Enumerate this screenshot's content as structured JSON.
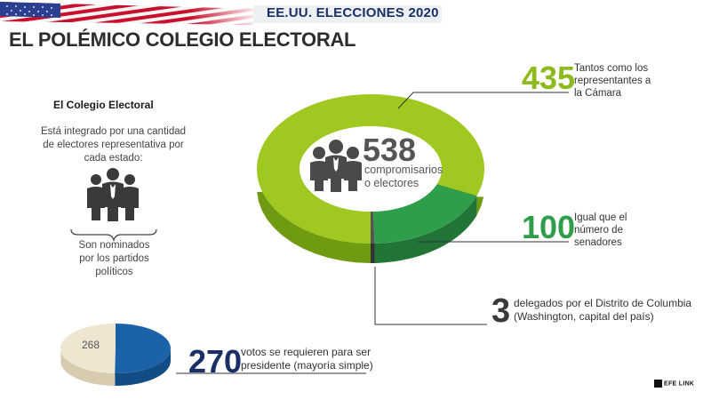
{
  "header": {
    "series_title": "EE.UU. ELECCIONES 2020",
    "main_title": "EL POLÉMICO COLEGIO ELECTORAL"
  },
  "sidebar": {
    "heading": "El Colegio Electoral",
    "text_lines": [
      "Está integrado por una cantidad",
      "de electores representativa por",
      "cada estado:"
    ],
    "nominated_lines": [
      "Son nominados",
      "por los partidos",
      "políticos"
    ]
  },
  "center": {
    "total": "538",
    "label_lines": [
      "compromisarios",
      "o electores"
    ]
  },
  "callouts": {
    "representatives": {
      "value": "435",
      "lines": [
        "Tantos como los",
        "representantes a",
        "la Cámara"
      ]
    },
    "senators": {
      "value": "100",
      "lines": [
        "Igual que el",
        "número de",
        "senadores"
      ]
    },
    "dc": {
      "value": "3",
      "lines": [
        "delegados por el Distrito de Columbia",
        "(Washington, capital del país)"
      ]
    },
    "majority": {
      "value": "270",
      "lines": [
        "votos se requieren para ser",
        "presidente (mayoría simple)"
      ]
    }
  },
  "brand": "EFE LINK",
  "colors": {
    "green_light": "#9fc820",
    "green_dark": "#2f9e4a",
    "dc_gray": "#555555",
    "blue_dark": "#1a2f66",
    "blue_pie": "#1b63a8",
    "cream_pie": "#efe6d2",
    "title_gray": "#2d2d2d"
  },
  "chart_data": [
    {
      "type": "pie",
      "title": "",
      "center_label": "538",
      "categories": [
        "representantes",
        "senadores",
        "Distrito de Columbia"
      ],
      "values": [
        435,
        100,
        3
      ],
      "total": 538
    },
    {
      "type": "pie",
      "title": "",
      "categories": [
        "268",
        "270"
      ],
      "values": [
        268,
        270
      ],
      "total": 538
    }
  ]
}
